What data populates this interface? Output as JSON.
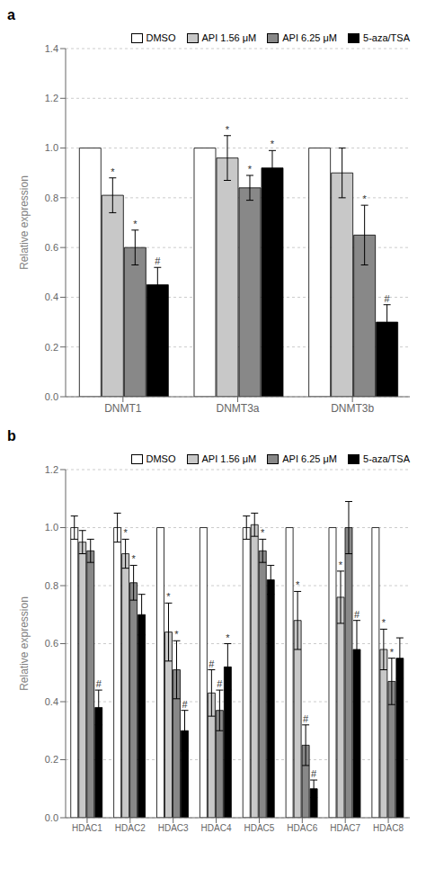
{
  "chart_data": [
    {
      "type": "bar",
      "title": "a",
      "ylabel": "Relative expression",
      "categories": [
        "DNMT1",
        "DNMT3a",
        "DNMT3b"
      ],
      "series": [
        {
          "name": "DMSO",
          "color": "white",
          "values": [
            1.0,
            1.0,
            1.0
          ],
          "errors": [
            0.0,
            0.0,
            0.0
          ],
          "annotations": [
            null,
            null,
            null
          ]
        },
        {
          "name": "API 1.56 μM",
          "color": "#c8c8c8",
          "values": [
            0.81,
            0.96,
            0.9
          ],
          "errors": [
            0.07,
            0.09,
            0.1
          ],
          "annotations": [
            "*",
            "*",
            null
          ]
        },
        {
          "name": "API 6.25 μM",
          "color": "#888888",
          "values": [
            0.6,
            0.84,
            0.65
          ],
          "errors": [
            0.07,
            0.05,
            0.12
          ],
          "annotations": [
            "*",
            "*",
            "*"
          ]
        },
        {
          "name": "5-aza/TSA",
          "color": "black",
          "values": [
            0.45,
            0.92,
            0.3
          ],
          "errors": [
            0.07,
            0.07,
            0.07
          ],
          "annotations": [
            "#",
            "*",
            "#"
          ]
        }
      ],
      "ylim": [
        0.0,
        1.4
      ],
      "yticks": [
        {
          "value": 0.0,
          "label": "0.0"
        },
        0.2,
        0.4,
        0.6,
        0.8,
        {
          "value": 1.0,
          "label": "1.0"
        },
        1.2,
        1.4
      ],
      "legend": "upper right"
    },
    {
      "type": "bar",
      "title": "b",
      "ylabel": "Relative expression",
      "categories": [
        "HDAC1",
        "HDAC2",
        "HDAC3",
        "HDAC4",
        "HDAC5",
        "HDAC6",
        "HDAC7",
        "HDAC8"
      ],
      "series": [
        {
          "name": "DMSO",
          "color": "white",
          "values": [
            1.0,
            1.0,
            1.0,
            1.0,
            1.0,
            1.0,
            1.0,
            1.0
          ],
          "errors": [
            0.04,
            0.05,
            0.0,
            0.0,
            0.04,
            0.0,
            0.0,
            0.0
          ],
          "annotations": [
            null,
            null,
            null,
            null,
            null,
            null,
            null,
            null
          ]
        },
        {
          "name": "API 1.56 μM",
          "color": "#c8c8c8",
          "values": [
            0.95,
            0.91,
            0.64,
            0.43,
            1.01,
            0.68,
            0.76,
            0.58
          ],
          "errors": [
            0.04,
            0.05,
            0.1,
            0.08,
            0.04,
            0.1,
            0.09,
            0.07
          ],
          "annotations": [
            null,
            "*",
            "*",
            "#",
            null,
            "*",
            "*",
            "*"
          ]
        },
        {
          "name": "API 6.25 μM",
          "color": "#888888",
          "values": [
            0.92,
            0.81,
            0.51,
            0.37,
            0.92,
            0.25,
            1.0,
            0.47
          ],
          "errors": [
            0.04,
            0.06,
            0.1,
            0.07,
            0.04,
            0.07,
            0.09,
            0.08
          ],
          "annotations": [
            null,
            "*",
            "*",
            "#",
            "*",
            "#",
            null,
            "*"
          ]
        },
        {
          "name": "5-aza/TSA",
          "color": "black",
          "values": [
            0.38,
            0.7,
            0.3,
            0.52,
            0.82,
            0.1,
            0.58,
            0.55
          ],
          "errors": [
            0.06,
            0.07,
            0.07,
            0.08,
            0.05,
            0.03,
            0.1,
            0.07
          ],
          "annotations": [
            "#",
            null,
            "#",
            "*",
            null,
            "#",
            "#",
            null
          ]
        }
      ],
      "ylim": [
        0.0,
        1.2
      ],
      "yticks": [
        {
          "value": 0.0,
          "label": "0.0"
        },
        0.2,
        0.4,
        0.6,
        0.8,
        {
          "value": 1.0,
          "label": "1.0"
        },
        1.2
      ],
      "legend": "upper right"
    }
  ]
}
